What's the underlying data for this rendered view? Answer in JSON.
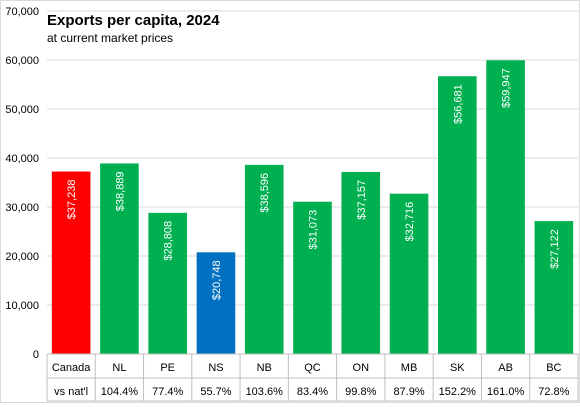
{
  "chart_data": {
    "type": "bar",
    "title": "Exports per capita, 2024",
    "subtitle": "at current market prices",
    "categories": [
      "Canada",
      "NL",
      "PE",
      "NS",
      "NB",
      "QC",
      "ON",
      "MB",
      "SK",
      "AB",
      "BC"
    ],
    "values": [
      37238,
      38889,
      28808,
      20748,
      38596,
      31073,
      37157,
      32716,
      56681,
      59947,
      27122
    ],
    "value_labels": [
      "$37,238",
      "$38,889",
      "$28,808",
      "$20,748",
      "$38,596",
      "$31,073",
      "$37,157",
      "$32,716",
      "$56,681",
      "$59,947",
      "$27,122"
    ],
    "bar_colors": [
      "#ff0000",
      "#00b050",
      "#00b050",
      "#0070c0",
      "#00b050",
      "#00b050",
      "#00b050",
      "#00b050",
      "#00b050",
      "#00b050",
      "#00b050"
    ],
    "ylim": [
      0,
      70000
    ],
    "y_ticks": [
      "0",
      "10,000",
      "20,000",
      "30,000",
      "40,000",
      "50,000",
      "60,000",
      "70,000"
    ],
    "y_tick_values": [
      0,
      10000,
      20000,
      30000,
      40000,
      50000,
      60000,
      70000
    ],
    "grid": true,
    "table": {
      "row_label": "vs nat'l",
      "values": [
        "",
        "104.4%",
        "77.4%",
        "55.7%",
        "103.6%",
        "83.4%",
        "99.8%",
        "87.9%",
        "152.2%",
        "161.0%",
        "72.8%"
      ]
    }
  }
}
